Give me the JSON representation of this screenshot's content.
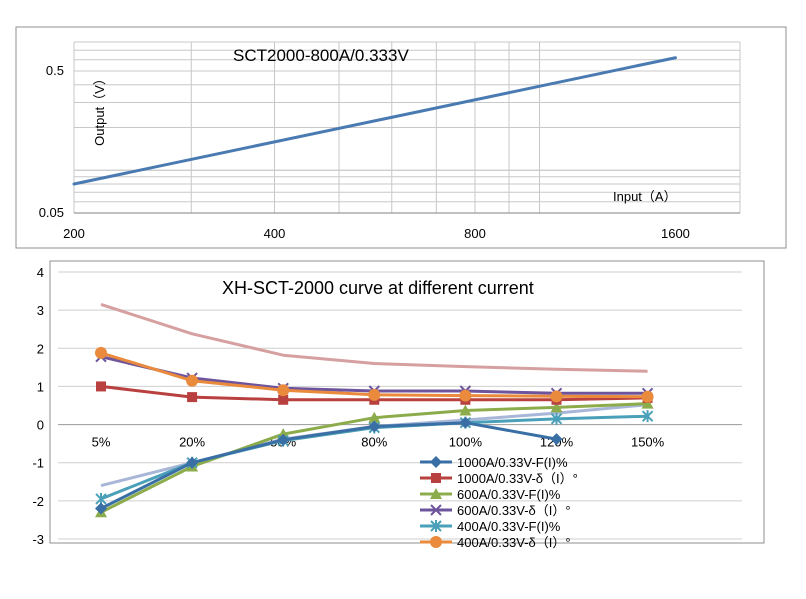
{
  "chart_data": [
    {
      "type": "line",
      "title": "SCT2000-800A/0.333V",
      "xlabel": "Input（A）",
      "ylabel": "Output（V）",
      "xscale": "log",
      "yscale": "log",
      "xlim": [
        200,
        2000
      ],
      "ylim": [
        0.05,
        0.8
      ],
      "x_ticks": [
        "200",
        "400",
        "800",
        "1600"
      ],
      "y_ticks": [
        "0.05",
        "0.5"
      ],
      "grid": true,
      "series": [
        {
          "name": "Output",
          "color": "#4a7ab2",
          "x": [
            200,
            1600
          ],
          "y": [
            0.08,
            0.62
          ]
        }
      ]
    },
    {
      "type": "line",
      "title": "XH-SCT-2000 curve at different current",
      "categories": [
        "5%",
        "20%",
        "50%",
        "80%",
        "100%",
        "120%",
        "150%"
      ],
      "y_ticks": [
        "4",
        "3",
        "2",
        "1",
        "0",
        "-1",
        "-2",
        "-3"
      ],
      "ylim": [
        -3,
        4
      ],
      "grid": true,
      "legend": "bottom-right",
      "series": [
        {
          "name": "1000A/0.33V-F(I)%",
          "color": "#3a6fa5",
          "marker": "diamond",
          "values": [
            -2.2,
            -1.0,
            -0.4,
            -0.05,
            0.05,
            -0.38,
            null
          ]
        },
        {
          "name": "1000A/0.33V-δ（I）°",
          "color": "#b8403f",
          "marker": "square",
          "values": [
            1.0,
            0.72,
            0.65,
            0.65,
            0.65,
            0.65,
            0.7
          ]
        },
        {
          "name": "600A/0.33V-F(I)%",
          "color": "#8cac4c",
          "marker": "triangle",
          "values": [
            -2.3,
            -1.1,
            -0.25,
            0.18,
            0.37,
            0.45,
            0.55
          ]
        },
        {
          "name": "600A/0.33V-δ（I）°",
          "color": "#6d549c",
          "marker": "x",
          "values": [
            1.78,
            1.22,
            0.95,
            0.88,
            0.88,
            0.82,
            0.82
          ]
        },
        {
          "name": "400A/0.33V-F(I)%",
          "color": "#4aa0b8",
          "marker": "star",
          "values": [
            -1.95,
            -1.0,
            -0.42,
            -0.08,
            0.05,
            0.15,
            0.22
          ]
        },
        {
          "name": "400A/0.33V-δ（I）°",
          "color": "#e98a3c",
          "marker": "circle",
          "values": [
            1.88,
            1.15,
            0.9,
            0.78,
            0.76,
            0.74,
            0.73
          ]
        },
        {
          "name": "",
          "color": "#d6a0a0",
          "marker": "none",
          "values": [
            3.15,
            2.38,
            1.82,
            1.6,
            1.52,
            1.45,
            1.4
          ]
        },
        {
          "name": "",
          "color": "#a8b6d8",
          "marker": "none",
          "values": [
            -1.6,
            -1.0,
            -0.38,
            -0.05,
            0.12,
            0.3,
            0.52
          ]
        }
      ]
    }
  ]
}
